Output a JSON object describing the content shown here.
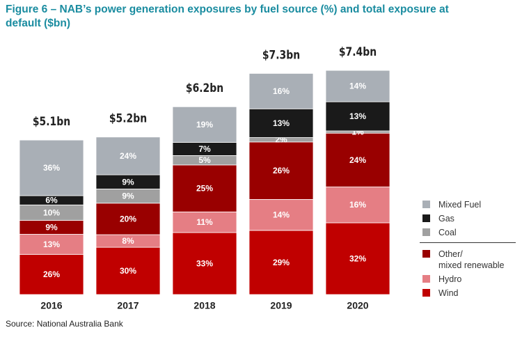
{
  "chart_data": {
    "type": "stacked-bar",
    "title": "Figure 6 – NAB’s power generation exposures by fuel source (%) and total exposure at default ($bn)",
    "source": "Source: National Australia Bank",
    "categories": [
      "2016",
      "2017",
      "2018",
      "2019",
      "2020"
    ],
    "totals": {
      "values": [
        5.1,
        5.2,
        6.2,
        7.3,
        7.4
      ],
      "value_labels": [
        "$5.1bn",
        "$5.2bn",
        "$6.2bn",
        "$7.3bn",
        "$7.4bn"
      ]
    },
    "series": [
      {
        "name": "Wind",
        "color": "#c00000",
        "values": [
          26,
          30,
          33,
          29,
          32
        ]
      },
      {
        "name": "Hydro",
        "color": "#e57e84",
        "values": [
          13,
          8,
          11,
          14,
          16
        ]
      },
      {
        "name": "Other/\nmixed renewable",
        "color": "#990000",
        "values": [
          9,
          20,
          25,
          26,
          24
        ]
      },
      {
        "name": "Coal",
        "color": "#a0a0a0",
        "values": [
          10,
          9,
          5,
          2,
          1
        ]
      },
      {
        "name": "Gas",
        "color": "#1a1a1a",
        "values": [
          6,
          9,
          7,
          13,
          13
        ]
      },
      {
        "name": "Mixed Fuel",
        "color": "#a9afb6",
        "values": [
          36,
          24,
          19,
          16,
          14
        ]
      }
    ]
  }
}
